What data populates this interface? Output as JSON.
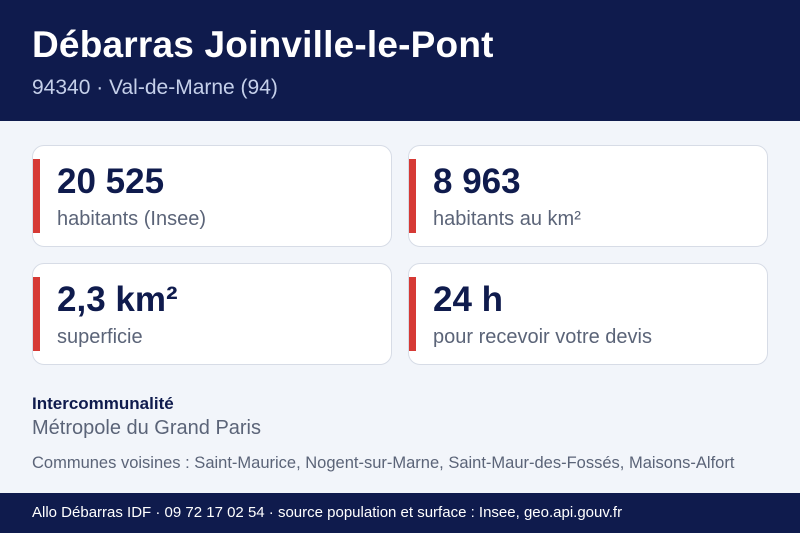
{
  "header": {
    "title": "Débarras Joinville-le-Pont",
    "subtitle": "94340 · Val-de-Marne (94)"
  },
  "stats": [
    {
      "value": "20 525",
      "label": "habitants (Insee)"
    },
    {
      "value": "8 963",
      "label": "habitants au km²"
    },
    {
      "value": "2,3 km²",
      "label": "superficie"
    },
    {
      "value": "24 h",
      "label": "pour recevoir votre devis"
    }
  ],
  "intercommunalite": {
    "label": "Intercommunalité",
    "value": "Métropole du Grand Paris"
  },
  "neighbors": "Communes voisines : Saint-Maurice, Nogent-sur-Marne, Saint-Maur-des-Fossés, Maisons-Alfort",
  "footer": "Allo Débarras IDF · 09 72 17 02 54 · source population et surface : Insee, geo.api.gouv.fr",
  "colors": {
    "navy": "#0f1b4d",
    "accent_red": "#d63a35",
    "background": "#f2f5fa"
  }
}
